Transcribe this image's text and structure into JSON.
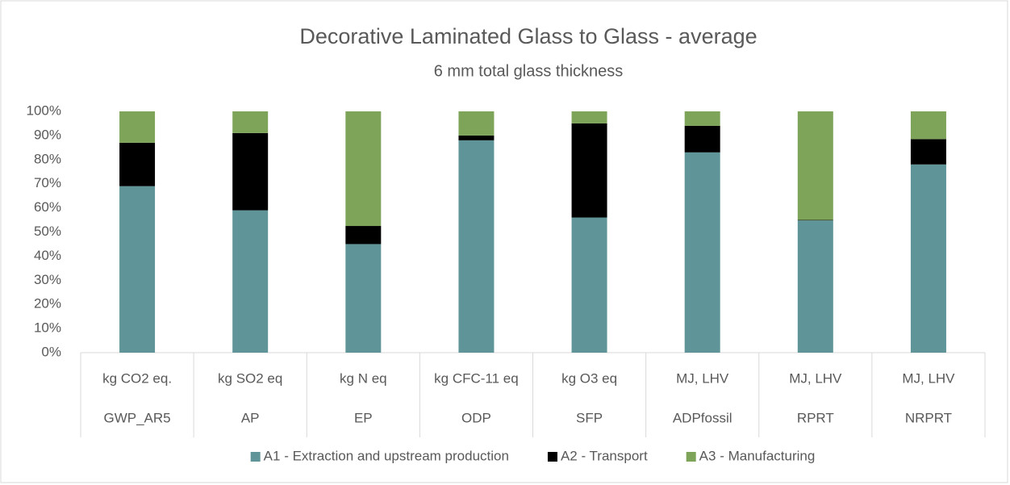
{
  "chart_data": {
    "type": "stacked_bar",
    "title": "Decorative Laminated Glass to Glass - average",
    "subtitle": "6 mm total glass thickness",
    "categories": [
      "GWP_AR5",
      "AP",
      "EP",
      "ODP",
      "SFP",
      "ADPfossil",
      "RPRT",
      "NRPRT"
    ],
    "category_units": [
      "kg CO2 eq.",
      "kg SO2 eq",
      "kg N eq",
      "kg CFC-11 eq",
      "kg O3 eq",
      "MJ, LHV",
      "MJ, LHV",
      "MJ, LHV"
    ],
    "series": [
      {
        "name": "A1 - Extraction and upstream production",
        "color": "#5f9598",
        "values": [
          69,
          59,
          45,
          88,
          56,
          83,
          54.8,
          78
        ]
      },
      {
        "name": "A2 - Transport",
        "color": "#000000",
        "values": [
          18,
          32,
          7.5,
          2,
          39,
          11,
          0.2,
          10.5
        ]
      },
      {
        "name": "A3 - Manufacturing",
        "color": "#7ea45a",
        "values": [
          13,
          9,
          47.5,
          10,
          5,
          6,
          45,
          11.5
        ]
      }
    ],
    "ylim": [
      0,
      100
    ],
    "yticks": [
      {
        "value": 0,
        "label": "0%"
      },
      {
        "value": 10,
        "label": "10%"
      },
      {
        "value": 20,
        "label": "20%"
      },
      {
        "value": 30,
        "label": "30%"
      },
      {
        "value": 40,
        "label": "40%"
      },
      {
        "value": 50,
        "label": "50%"
      },
      {
        "value": 60,
        "label": "60%"
      },
      {
        "value": 70,
        "label": "70%"
      },
      {
        "value": 80,
        "label": "80%"
      },
      {
        "value": 90,
        "label": "90%"
      },
      {
        "value": 100,
        "label": "100%"
      }
    ],
    "grid": false,
    "legend": "bottom"
  }
}
